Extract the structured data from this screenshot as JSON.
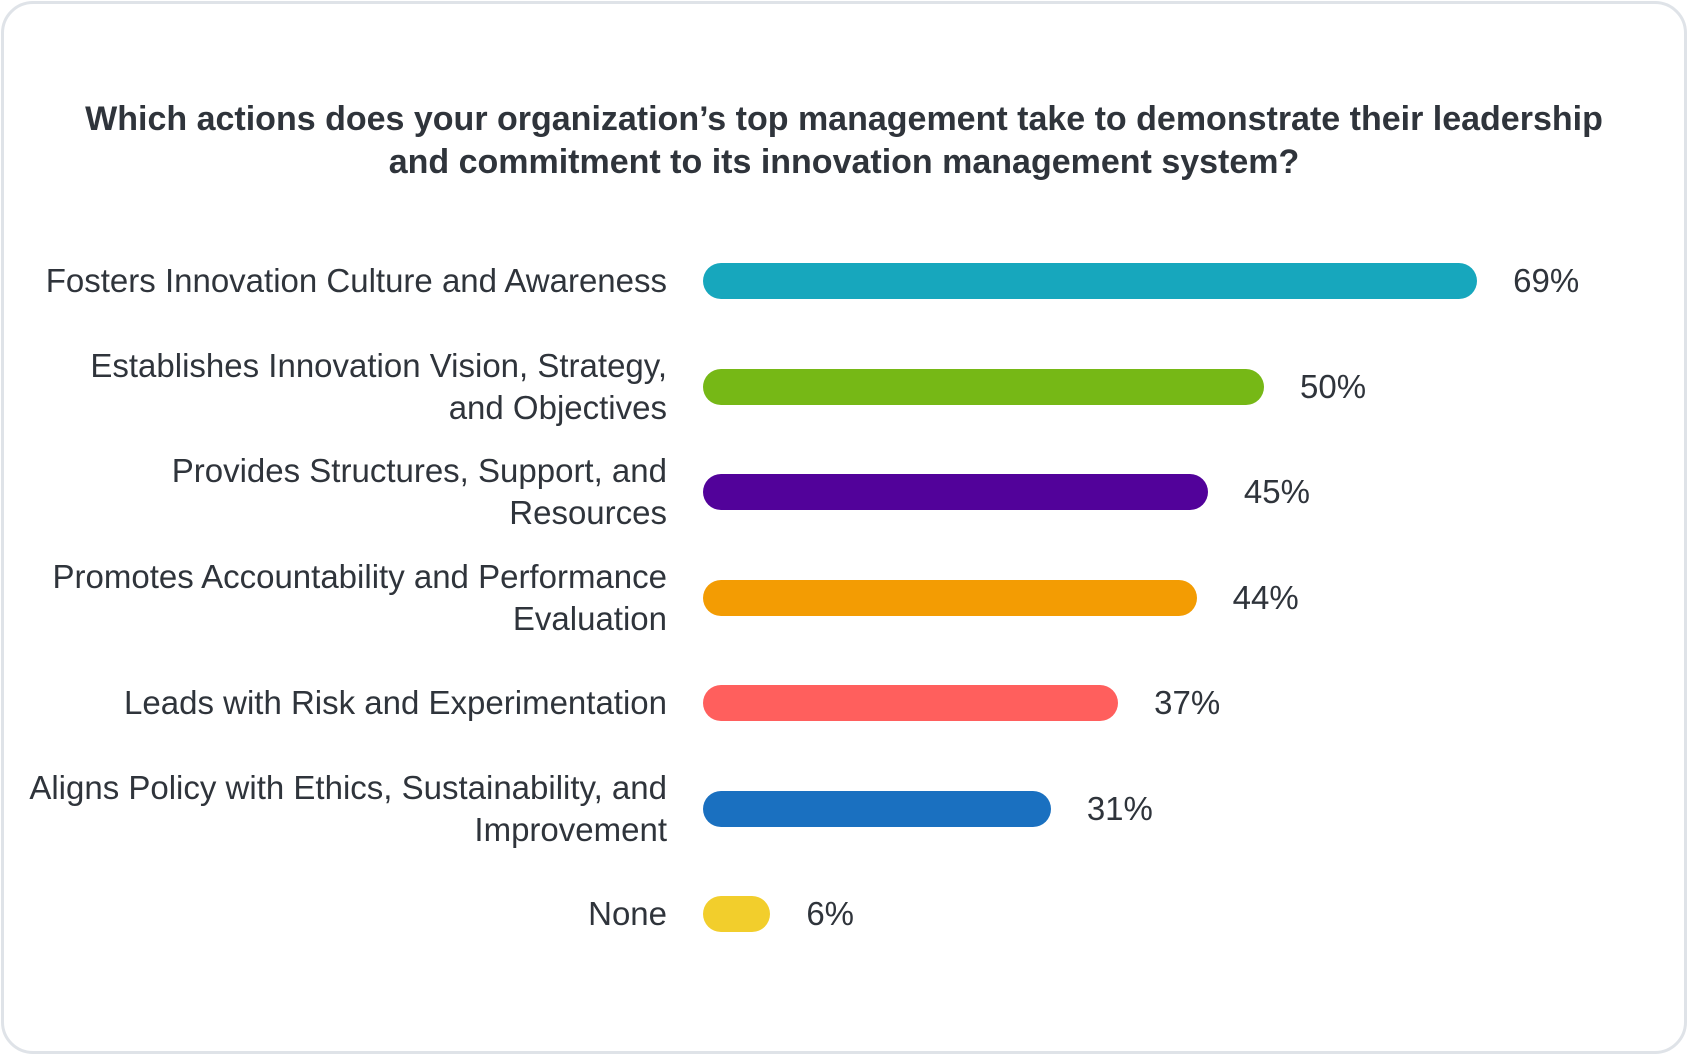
{
  "chart_data": {
    "type": "bar",
    "orientation": "horizontal",
    "title": "Which actions does your organization’s top management take to demonstrate their leadership and commitment to its innovation management system?",
    "categories": [
      "Fosters Innovation Culture and Awareness",
      "Establishes Innovation Vision, Strategy, and Objectives",
      "Provides Structures, Support, and Resources",
      "Promotes Accountability and Performance Evaluation",
      "Leads with Risk and Experimentation",
      "Aligns Policy with Ethics, Sustainability, and Improvement",
      "None"
    ],
    "values": [
      69,
      50,
      45,
      44,
      37,
      31,
      6
    ],
    "value_labels": [
      "69%",
      "50%",
      "45%",
      "44%",
      "37%",
      "31%",
      "6%"
    ],
    "colors": [
      "#17a7bd",
      "#76b816",
      "#52029a",
      "#f39c03",
      "#ff5f5d",
      "#1a70c0",
      "#f2ce2c"
    ],
    "unit": "%",
    "xlim": [
      0,
      100
    ],
    "grid": false,
    "legend": "none"
  }
}
